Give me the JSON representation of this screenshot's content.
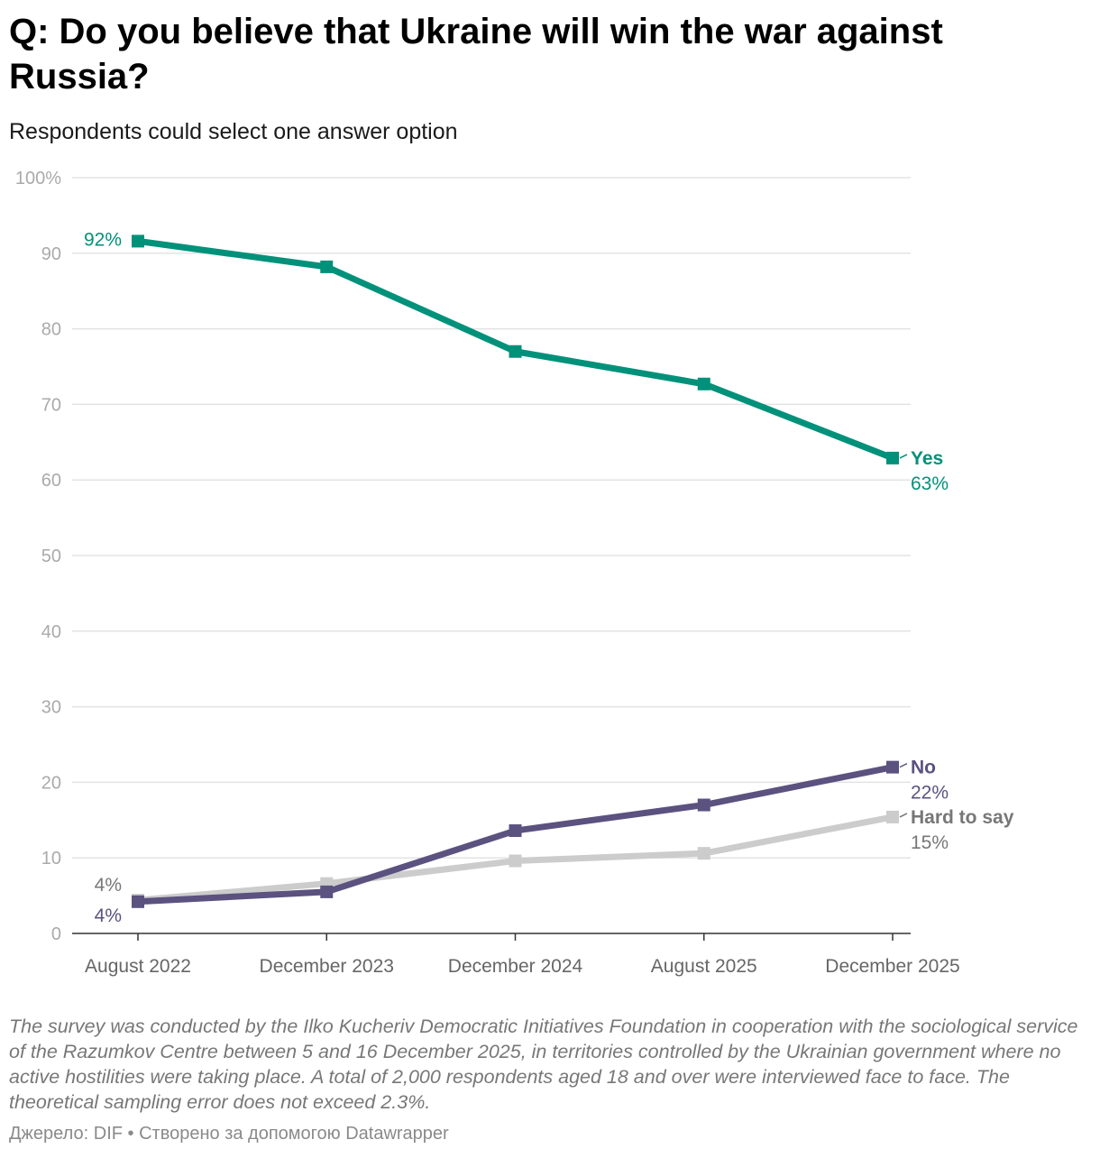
{
  "title": "Q: Do you believe that Ukraine will win the war against Russia?",
  "subtitle": "Respondents could select one answer option",
  "notes": "The survey was conducted by the Ilko Kucheriv Democratic Initiatives Foundation in cooperation with the sociological service of the Razumkov Centre between 5 and 16 December 2025, in territories controlled by the Ukrainian government where no active hostilities were taking place. A total of 2,000 respondents aged 18 and over were interviewed face to face. The theoretical sampling error does not exceed 2.3%.",
  "source": "Джерело: DIF • Створено за допомогою Datawrapper",
  "chart_data": {
    "type": "line",
    "title": "Q: Do you believe that Ukraine will win the war against Russia?",
    "subtitle": "Respondents could select one answer option",
    "xlabel": "",
    "ylabel": "",
    "ylim": [
      0,
      100
    ],
    "y_ticks": [
      0,
      10,
      20,
      30,
      40,
      50,
      60,
      70,
      80,
      90,
      100
    ],
    "y_tick_labels": [
      "0",
      "10",
      "20",
      "30",
      "40",
      "50",
      "60",
      "70",
      "80",
      "90",
      "100%"
    ],
    "grid": true,
    "categories": [
      "August 2022",
      "December 2023",
      "December 2024",
      "August 2025",
      "December 2025"
    ],
    "series": [
      {
        "name": "Hard to say",
        "color": "#cccccc",
        "label_color": "#777777",
        "values": [
          4.4,
          6.6,
          9.6,
          10.6,
          15.4
        ],
        "start_label": "4%",
        "end_label": "15%"
      },
      {
        "name": "No",
        "color": "#5b5280",
        "label_color": "#5b5280",
        "values": [
          4.2,
          5.5,
          13.6,
          17.0,
          22.0
        ],
        "start_label": "4%",
        "end_label": "22%"
      },
      {
        "name": "Yes",
        "color": "#00917a",
        "label_color": "#00917a",
        "values": [
          91.6,
          88.2,
          77.0,
          72.7,
          62.9
        ],
        "start_label": "92%",
        "end_label": "63%"
      }
    ]
  }
}
